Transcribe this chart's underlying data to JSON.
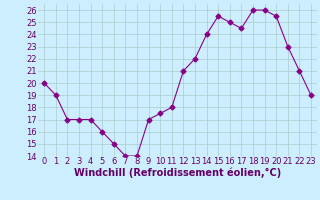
{
  "x": [
    0,
    1,
    2,
    3,
    4,
    5,
    6,
    7,
    8,
    9,
    10,
    11,
    12,
    13,
    14,
    15,
    16,
    17,
    18,
    19,
    20,
    21,
    22,
    23
  ],
  "y": [
    20,
    19,
    17,
    17,
    17,
    16,
    15,
    14,
    14,
    17,
    17.5,
    18,
    21,
    22,
    24,
    25.5,
    25,
    24.5,
    26,
    26,
    25.5,
    23,
    21,
    19
  ],
  "line_color": "#880088",
  "marker": "D",
  "marker_size": 2.5,
  "bg_color": "#cceeff",
  "grid_color": "#aacccc",
  "xlabel": "Windchill (Refroidissement éolien,°C)",
  "xlabel_color": "#660066",
  "xlabel_fontsize": 7,
  "tick_color": "#660066",
  "tick_fontsize": 6,
  "ylim": [
    14,
    26.5
  ],
  "xlim": [
    -0.5,
    23.5
  ],
  "yticks": [
    14,
    15,
    16,
    17,
    18,
    19,
    20,
    21,
    22,
    23,
    24,
    25,
    26
  ],
  "xticks": [
    0,
    1,
    2,
    3,
    4,
    5,
    6,
    7,
    8,
    9,
    10,
    11,
    12,
    13,
    14,
    15,
    16,
    17,
    18,
    19,
    20,
    21,
    22,
    23
  ]
}
